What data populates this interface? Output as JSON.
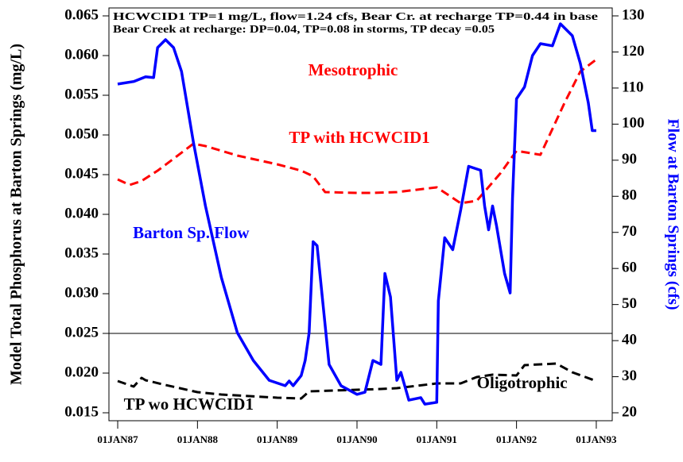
{
  "chart_data": {
    "type": "line",
    "title": "HCWCID1 TP=1 mg/L, flow=1.24 cfs, Bear Cr. at recharge TP=0.44 in base",
    "subtitle": "Bear Creek at recharge:  DP=0.04, TP=0.08 in storms,   TP decay =0.05",
    "y_label": "Model Total Phosphorus at Barton Springs (mg/L)",
    "y2_label": "Flow at Barton Springs (cfs)",
    "xlim": [
      1986.89,
      1993.2
    ],
    "xticks": [
      {
        "value": 1987,
        "label": "01JAN87"
      },
      {
        "value": 1988,
        "label": "01JAN88"
      },
      {
        "value": 1989,
        "label": "01JAN89"
      },
      {
        "value": 1990,
        "label": "01JAN90"
      },
      {
        "value": 1991,
        "label": "01JAN91"
      },
      {
        "value": 1992,
        "label": "01JAN92"
      },
      {
        "value": 1993,
        "label": "01JAN93"
      }
    ],
    "ylim": [
      0.014,
      0.066
    ],
    "yticks": [
      0.015,
      {
        "value": 0.02,
        "label": "0.020"
      },
      0.025,
      {
        "value": 0.03,
        "label": "0.030"
      },
      0.035,
      {
        "value": 0.04,
        "label": "0.040"
      },
      0.045,
      {
        "value": 0.05,
        "label": "0.050"
      },
      0.055,
      {
        "value": 0.06,
        "label": "0.060"
      },
      0.065
    ],
    "y2lim": [
      17.8,
      132.2
    ],
    "y2ticks": [
      20,
      30,
      40,
      50,
      60,
      70,
      80,
      90,
      100,
      110,
      120,
      130
    ],
    "reference_line": 0.025,
    "annotations": [
      {
        "text": "Mesotrophic",
        "color": "#ff0000",
        "x": 1989.95,
        "y": 0.058
      },
      {
        "text": "TP with HCWCID1",
        "color": "#ff0000",
        "x": 1990.03,
        "y": 0.0495
      },
      {
        "text": "Barton Sp. Flow",
        "color": "#0000ff",
        "x": 1987.92,
        "y": 0.0375
      },
      {
        "text": "Oligotrophic",
        "color": "#000000",
        "x": 1992.07,
        "y": 0.0186
      },
      {
        "text": "TP wo HCWCID1",
        "color": "#000000",
        "x": 1987.89,
        "y": 0.0159
      }
    ],
    "series": [
      {
        "name": "TP with HCWCID1",
        "color": "#ff0000",
        "style": "dashed",
        "x": [
          1987.0,
          1987.15,
          1987.3,
          1987.5,
          1987.7,
          1987.95,
          1988.1,
          1988.5,
          1989.0,
          1989.3,
          1989.45,
          1989.6,
          1990.0,
          1990.2,
          1990.5,
          1991.0,
          1991.3,
          1991.5,
          1991.8,
          1992.0,
          1992.3,
          1992.6,
          1992.8,
          1993.0
        ],
        "values": [
          0.0444,
          0.0437,
          0.0442,
          0.0455,
          0.047,
          0.0489,
          0.0486,
          0.0474,
          0.0463,
          0.0455,
          0.0448,
          0.0428,
          0.0427,
          0.0427,
          0.0428,
          0.0434,
          0.0414,
          0.0417,
          0.0452,
          0.048,
          0.0475,
          0.054,
          0.058,
          0.0595
        ]
      },
      {
        "name": "TP wo HCWCID1",
        "color": "#000000",
        "style": "dashed",
        "x": [
          1987.0,
          1987.2,
          1987.3,
          1987.35,
          1987.6,
          1988.0,
          1988.3,
          1989.0,
          1989.3,
          1989.4,
          1990.0,
          1990.3,
          1990.5,
          1991.0,
          1991.3,
          1991.5,
          1991.7,
          1992.0,
          1992.1,
          1992.3,
          1992.5,
          1992.7,
          1993.0
        ],
        "values": [
          0.019,
          0.0183,
          0.0194,
          0.0191,
          0.0185,
          0.0176,
          0.0173,
          0.0169,
          0.0168,
          0.0177,
          0.0179,
          0.018,
          0.0181,
          0.0187,
          0.0187,
          0.0195,
          0.0198,
          0.0197,
          0.021,
          0.0211,
          0.0212,
          0.0201,
          0.019
        ]
      },
      {
        "name": "Barton Sp. Flow",
        "color": "#0000ff",
        "style": "solid",
        "axis": "y2",
        "x": [
          1987.0,
          1987.2,
          1987.35,
          1987.45,
          1987.5,
          1987.6,
          1987.7,
          1987.8,
          1987.95,
          1988.1,
          1988.3,
          1988.5,
          1988.7,
          1988.9,
          1989.1,
          1989.15,
          1989.2,
          1989.3,
          1989.35,
          1989.4,
          1989.45,
          1989.5,
          1989.55,
          1989.65,
          1989.8,
          1990.0,
          1990.1,
          1990.2,
          1990.3,
          1990.35,
          1990.42,
          1990.5,
          1990.55,
          1990.65,
          1990.8,
          1990.85,
          1991.0,
          1991.02,
          1991.1,
          1991.2,
          1991.3,
          1991.4,
          1991.55,
          1991.6,
          1991.65,
          1991.7,
          1991.75,
          1991.85,
          1991.92,
          1991.95,
          1992.0,
          1992.1,
          1992.2,
          1992.3,
          1992.45,
          1992.55,
          1992.7,
          1992.8,
          1992.9,
          1992.95,
          1993.0
        ],
        "values": [
          111.1,
          111.8,
          113.1,
          112.9,
          121.2,
          123.4,
          121.2,
          114.6,
          94.9,
          77.3,
          57.5,
          42.2,
          34.5,
          29.0,
          27.5,
          28.8,
          27.5,
          30.3,
          34.5,
          42.2,
          67.4,
          66.3,
          55.4,
          33.4,
          27.5,
          25.1,
          25.7,
          34.5,
          33.4,
          58.6,
          52.1,
          29.0,
          31.2,
          23.5,
          24.2,
          22.4,
          22.9,
          51.0,
          68.5,
          65.2,
          76.2,
          88.3,
          87.2,
          77.3,
          70.7,
          77.3,
          71.8,
          58.6,
          53.2,
          79.5,
          107.0,
          110.3,
          119.0,
          122.3,
          121.7,
          127.8,
          124.5,
          116.8,
          105.9,
          98.2,
          98.2
        ]
      }
    ]
  }
}
